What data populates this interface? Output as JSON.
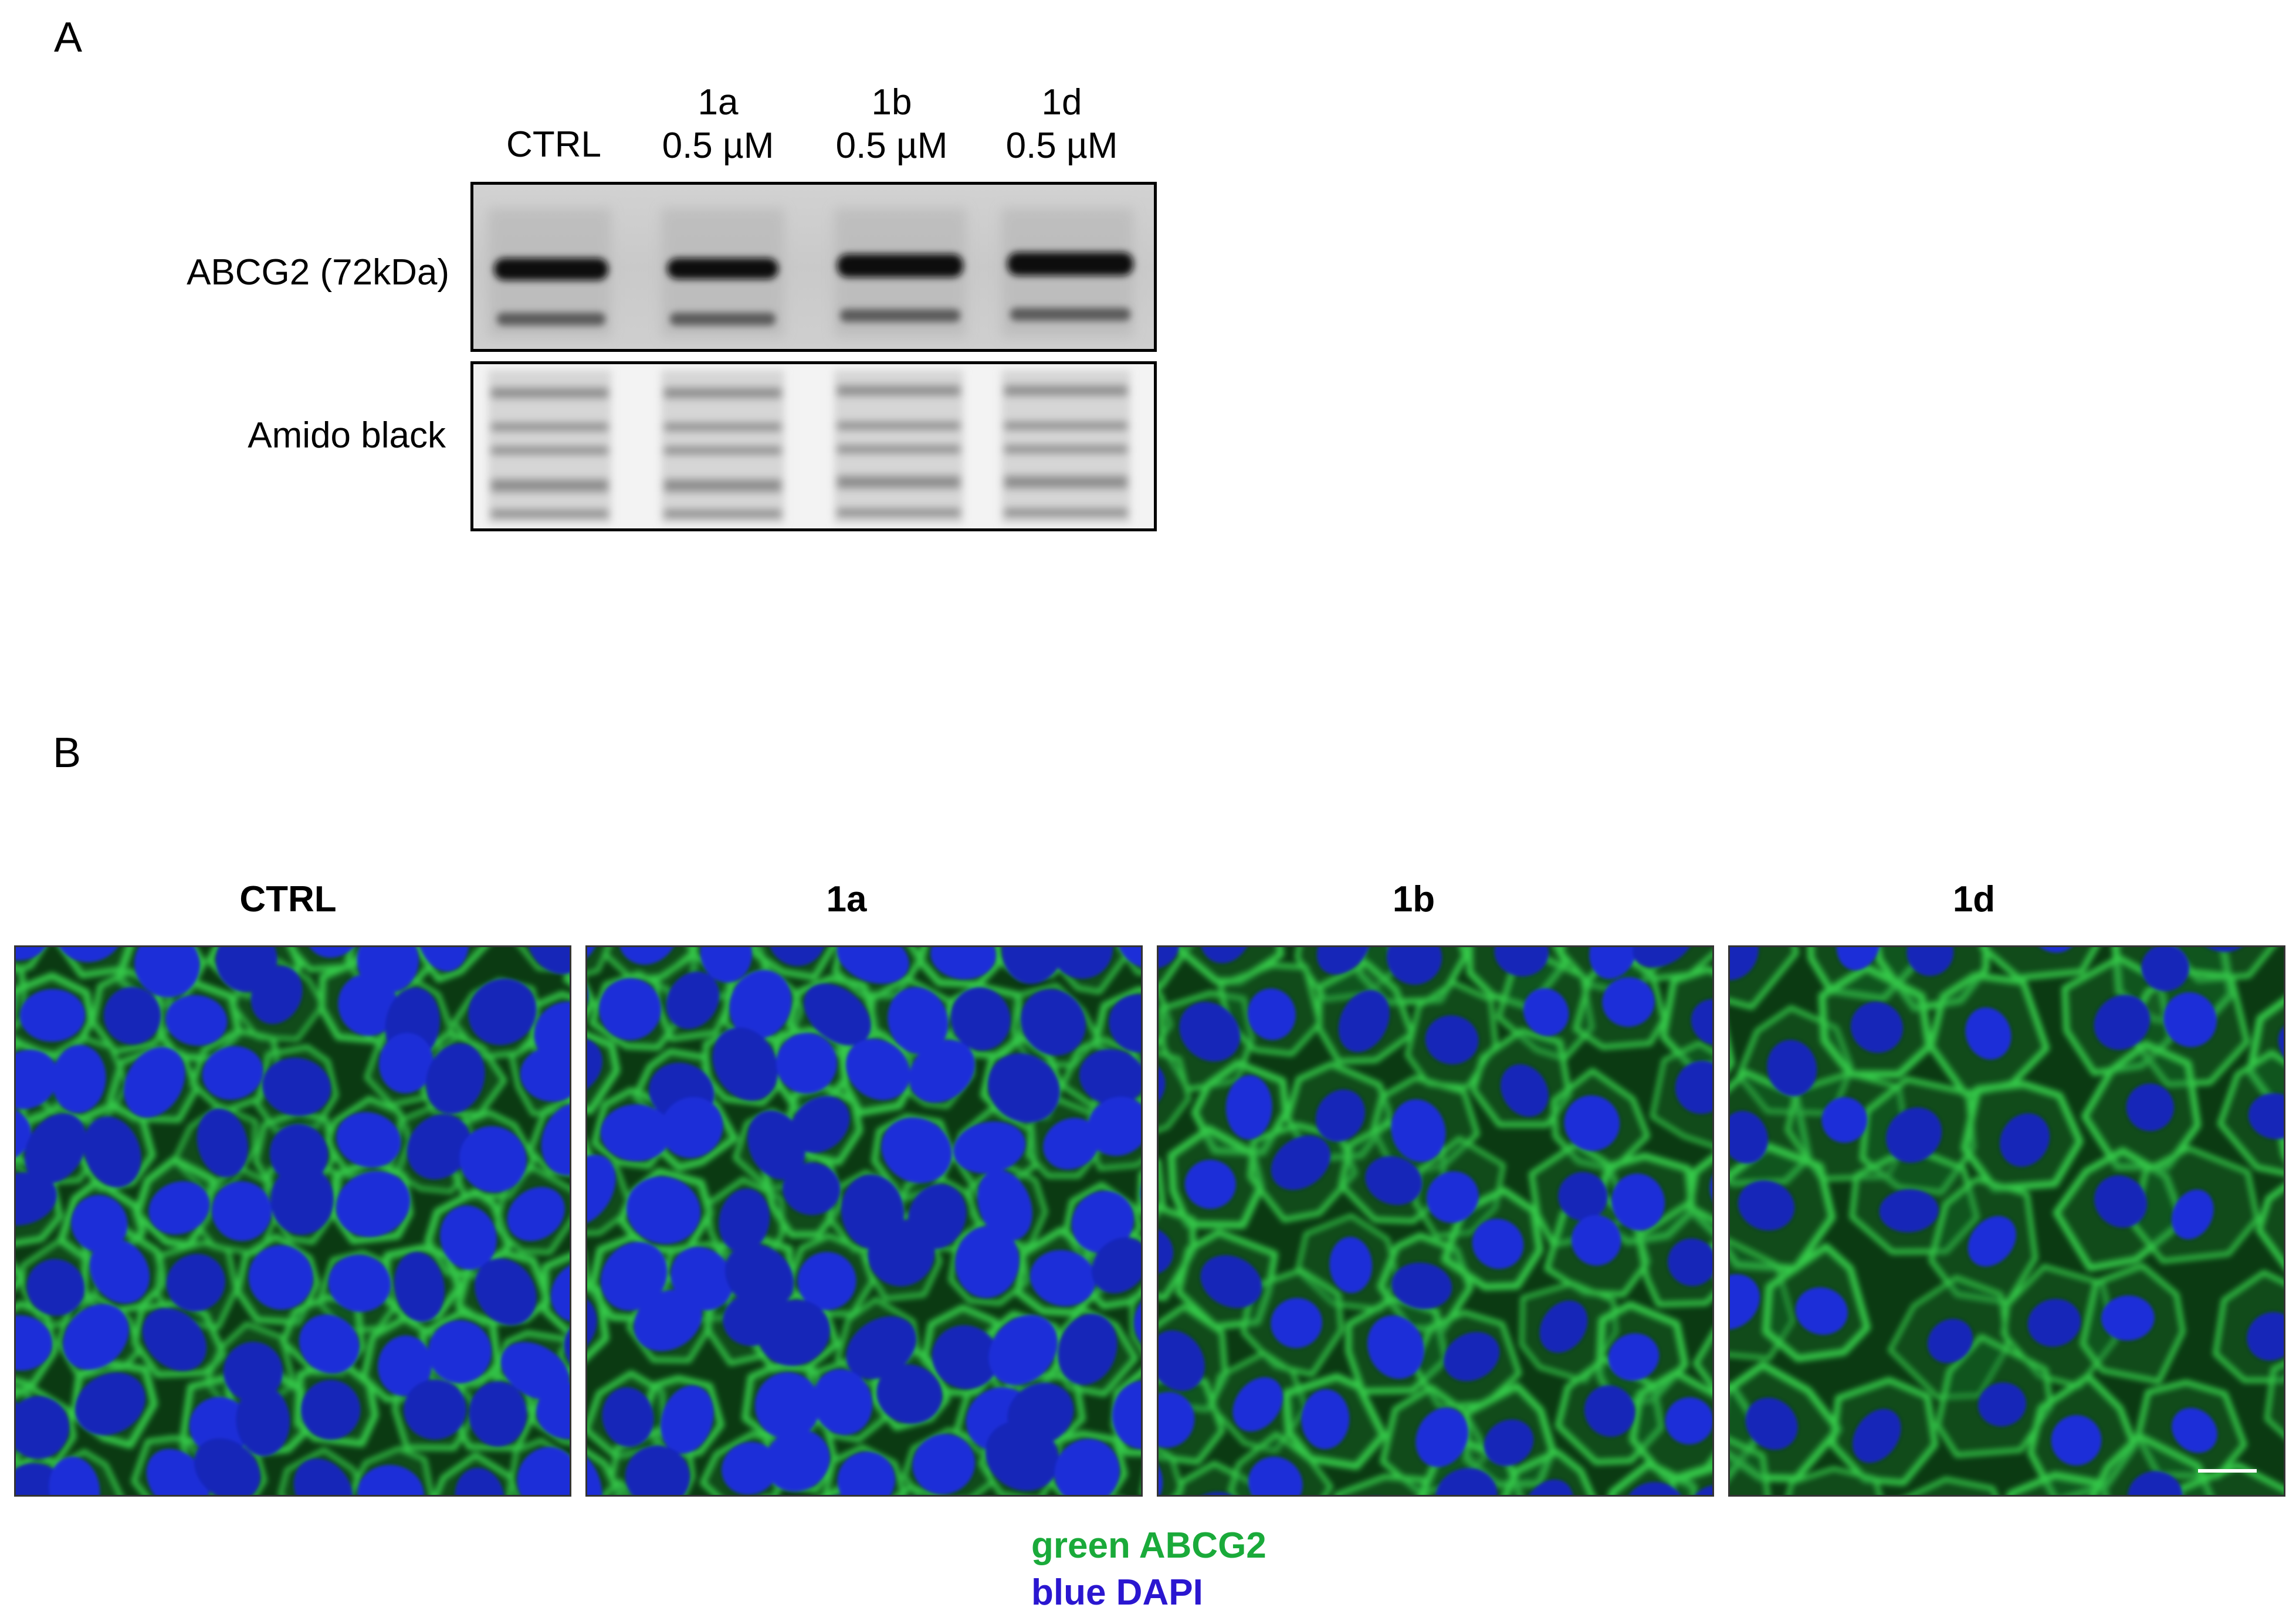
{
  "panel_a": {
    "letter": "A",
    "lanes": [
      {
        "name": "CTRL",
        "conc": ""
      },
      {
        "name": "1a",
        "conc": "0.5 µM"
      },
      {
        "name": "1b",
        "conc": "0.5 µM"
      },
      {
        "name": "1d",
        "conc": "0.5 µM"
      }
    ],
    "rows": {
      "abcg2": "ABCG2 (72kDa)",
      "amido": "Amido black"
    }
  },
  "panel_b": {
    "letter": "B",
    "panels": [
      {
        "title": "CTRL"
      },
      {
        "title": "1a"
      },
      {
        "title": "1b"
      },
      {
        "title": "1d"
      }
    ],
    "legend": {
      "green": "green ABCG2",
      "blue": "blue DAPI",
      "green_color": "#1aaa3a",
      "blue_color": "#2a16d0"
    }
  }
}
